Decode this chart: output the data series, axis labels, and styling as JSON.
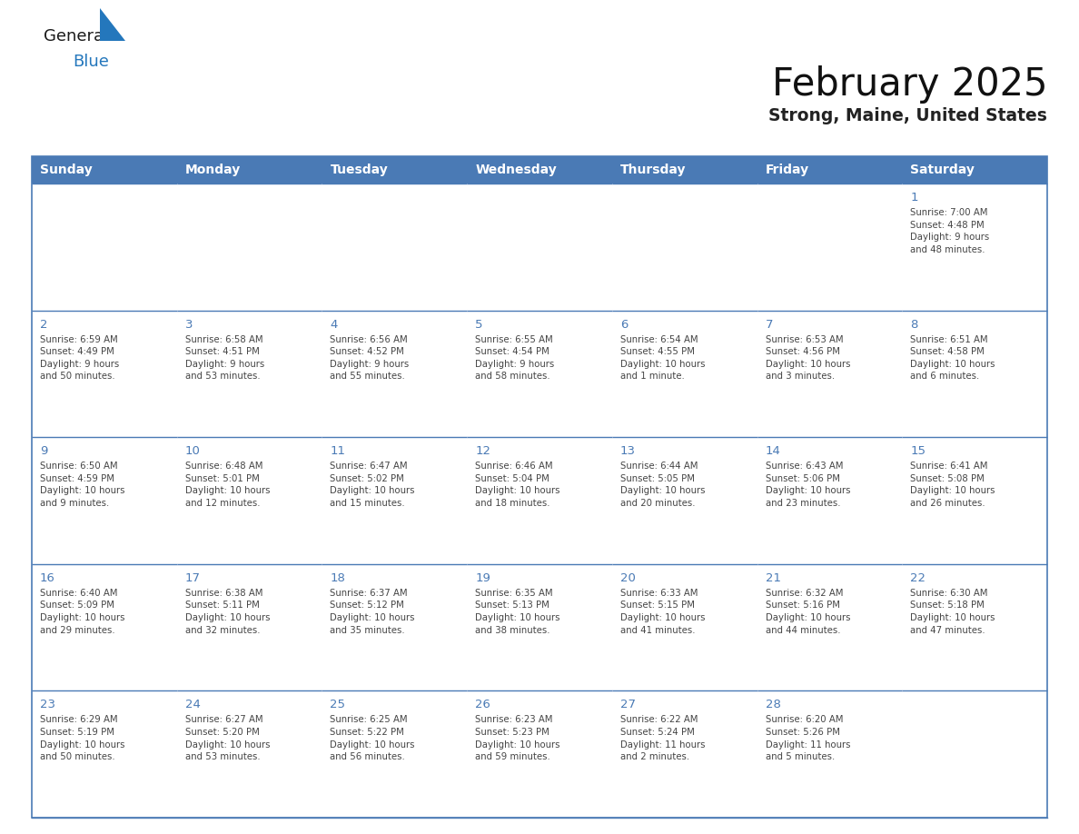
{
  "title": "February 2025",
  "subtitle": "Strong, Maine, United States",
  "days_of_week": [
    "Sunday",
    "Monday",
    "Tuesday",
    "Wednesday",
    "Thursday",
    "Friday",
    "Saturday"
  ],
  "header_bg": "#4a7ab5",
  "header_text": "#FFFFFF",
  "cell_bg": "#FFFFFF",
  "day_number_color": "#4a7ab5",
  "text_color": "#444444",
  "line_color": "#4a7ab5",
  "logo_general_color": "#1a1a1a",
  "logo_blue_color": "#2477bc",
  "weeks": [
    [
      {
        "day": null,
        "info": null
      },
      {
        "day": null,
        "info": null
      },
      {
        "day": null,
        "info": null
      },
      {
        "day": null,
        "info": null
      },
      {
        "day": null,
        "info": null
      },
      {
        "day": null,
        "info": null
      },
      {
        "day": 1,
        "info": "Sunrise: 7:00 AM\nSunset: 4:48 PM\nDaylight: 9 hours\nand 48 minutes."
      }
    ],
    [
      {
        "day": 2,
        "info": "Sunrise: 6:59 AM\nSunset: 4:49 PM\nDaylight: 9 hours\nand 50 minutes."
      },
      {
        "day": 3,
        "info": "Sunrise: 6:58 AM\nSunset: 4:51 PM\nDaylight: 9 hours\nand 53 minutes."
      },
      {
        "day": 4,
        "info": "Sunrise: 6:56 AM\nSunset: 4:52 PM\nDaylight: 9 hours\nand 55 minutes."
      },
      {
        "day": 5,
        "info": "Sunrise: 6:55 AM\nSunset: 4:54 PM\nDaylight: 9 hours\nand 58 minutes."
      },
      {
        "day": 6,
        "info": "Sunrise: 6:54 AM\nSunset: 4:55 PM\nDaylight: 10 hours\nand 1 minute."
      },
      {
        "day": 7,
        "info": "Sunrise: 6:53 AM\nSunset: 4:56 PM\nDaylight: 10 hours\nand 3 minutes."
      },
      {
        "day": 8,
        "info": "Sunrise: 6:51 AM\nSunset: 4:58 PM\nDaylight: 10 hours\nand 6 minutes."
      }
    ],
    [
      {
        "day": 9,
        "info": "Sunrise: 6:50 AM\nSunset: 4:59 PM\nDaylight: 10 hours\nand 9 minutes."
      },
      {
        "day": 10,
        "info": "Sunrise: 6:48 AM\nSunset: 5:01 PM\nDaylight: 10 hours\nand 12 minutes."
      },
      {
        "day": 11,
        "info": "Sunrise: 6:47 AM\nSunset: 5:02 PM\nDaylight: 10 hours\nand 15 minutes."
      },
      {
        "day": 12,
        "info": "Sunrise: 6:46 AM\nSunset: 5:04 PM\nDaylight: 10 hours\nand 18 minutes."
      },
      {
        "day": 13,
        "info": "Sunrise: 6:44 AM\nSunset: 5:05 PM\nDaylight: 10 hours\nand 20 minutes."
      },
      {
        "day": 14,
        "info": "Sunrise: 6:43 AM\nSunset: 5:06 PM\nDaylight: 10 hours\nand 23 minutes."
      },
      {
        "day": 15,
        "info": "Sunrise: 6:41 AM\nSunset: 5:08 PM\nDaylight: 10 hours\nand 26 minutes."
      }
    ],
    [
      {
        "day": 16,
        "info": "Sunrise: 6:40 AM\nSunset: 5:09 PM\nDaylight: 10 hours\nand 29 minutes."
      },
      {
        "day": 17,
        "info": "Sunrise: 6:38 AM\nSunset: 5:11 PM\nDaylight: 10 hours\nand 32 minutes."
      },
      {
        "day": 18,
        "info": "Sunrise: 6:37 AM\nSunset: 5:12 PM\nDaylight: 10 hours\nand 35 minutes."
      },
      {
        "day": 19,
        "info": "Sunrise: 6:35 AM\nSunset: 5:13 PM\nDaylight: 10 hours\nand 38 minutes."
      },
      {
        "day": 20,
        "info": "Sunrise: 6:33 AM\nSunset: 5:15 PM\nDaylight: 10 hours\nand 41 minutes."
      },
      {
        "day": 21,
        "info": "Sunrise: 6:32 AM\nSunset: 5:16 PM\nDaylight: 10 hours\nand 44 minutes."
      },
      {
        "day": 22,
        "info": "Sunrise: 6:30 AM\nSunset: 5:18 PM\nDaylight: 10 hours\nand 47 minutes."
      }
    ],
    [
      {
        "day": 23,
        "info": "Sunrise: 6:29 AM\nSunset: 5:19 PM\nDaylight: 10 hours\nand 50 minutes."
      },
      {
        "day": 24,
        "info": "Sunrise: 6:27 AM\nSunset: 5:20 PM\nDaylight: 10 hours\nand 53 minutes."
      },
      {
        "day": 25,
        "info": "Sunrise: 6:25 AM\nSunset: 5:22 PM\nDaylight: 10 hours\nand 56 minutes."
      },
      {
        "day": 26,
        "info": "Sunrise: 6:23 AM\nSunset: 5:23 PM\nDaylight: 10 hours\nand 59 minutes."
      },
      {
        "day": 27,
        "info": "Sunrise: 6:22 AM\nSunset: 5:24 PM\nDaylight: 11 hours\nand 2 minutes."
      },
      {
        "day": 28,
        "info": "Sunrise: 6:20 AM\nSunset: 5:26 PM\nDaylight: 11 hours\nand 5 minutes."
      },
      {
        "day": null,
        "info": null
      }
    ]
  ]
}
